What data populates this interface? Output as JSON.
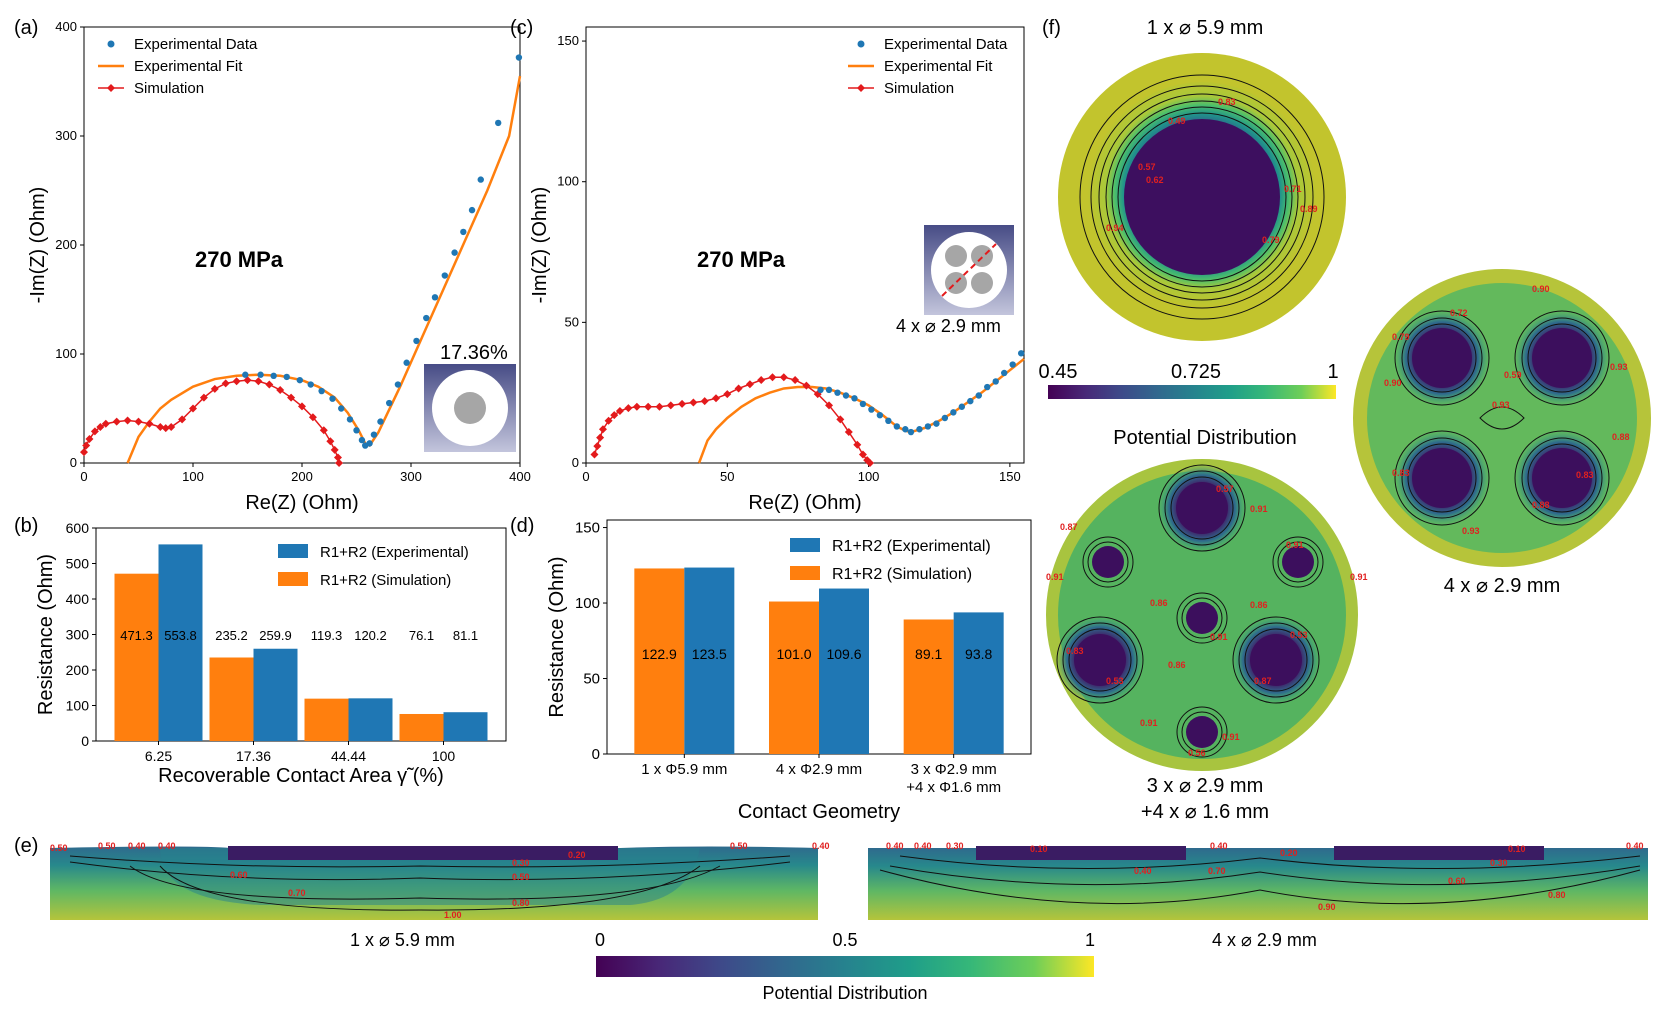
{
  "panel_labels": [
    "(a)",
    "(b)",
    "(c)",
    "(d)",
    "(e)",
    "(f)"
  ],
  "colors": {
    "experimental": "#1f77b4",
    "fit": "#ff7f0e",
    "simulation": "#e31a1c",
    "bar_sim": "#ff7f0e",
    "bar_exp": "#1f77b4",
    "viridis_dark": "#440154",
    "viridis_mid": "#21918c",
    "viridis_light": "#fde725",
    "contour_label": "#e02020"
  },
  "chart_data": [
    {
      "id": "a",
      "type": "scatter",
      "title": "",
      "annotation": "270 MPa",
      "inset_label": "17.36%",
      "xlabel": "Re(Z) (Ohm)",
      "ylabel": "-Im(Z) (Ohm)",
      "xlim": [
        0,
        400
      ],
      "ylim": [
        0,
        400
      ],
      "xticks": [
        0,
        100,
        200,
        300,
        400
      ],
      "yticks": [
        0,
        100,
        200,
        300,
        400
      ],
      "legend": [
        "Experimental Data",
        "Experimental Fit",
        "Simulation"
      ],
      "legend_position": "top-left",
      "series": [
        {
          "name": "Experimental Data",
          "style": "dots",
          "x": [
            148,
            162,
            174,
            186,
            198,
            208,
            218,
            228,
            236,
            244,
            250,
            255,
            258,
            262,
            266,
            272,
            280,
            288,
            296,
            305,
            314,
            322,
            331,
            340,
            348,
            356,
            364,
            380,
            399
          ],
          "y": [
            81,
            81,
            80,
            79,
            76,
            72,
            66,
            59,
            50,
            40,
            30,
            21,
            16,
            18,
            26,
            38,
            55,
            72,
            92,
            112,
            133,
            152,
            172,
            193,
            212,
            232,
            260,
            312,
            372
          ]
        },
        {
          "name": "Experimental Fit",
          "style": "line",
          "x": [
            40,
            50,
            60,
            70,
            80,
            100,
            120,
            140,
            160,
            180,
            200,
            215,
            230,
            242,
            252,
            258,
            262,
            270,
            290,
            310,
            330,
            350,
            370,
            390,
            400
          ],
          "y": [
            0,
            24,
            38,
            50,
            58,
            70,
            77,
            80,
            81,
            80,
            76,
            70,
            60,
            46,
            30,
            18,
            16,
            28,
            70,
            115,
            160,
            205,
            250,
            300,
            355
          ]
        },
        {
          "name": "Simulation",
          "style": "line-markers",
          "x": [
            0,
            2,
            5,
            10,
            15,
            20,
            30,
            40,
            50,
            60,
            70,
            75,
            80,
            90,
            100,
            110,
            120,
            130,
            140,
            150,
            160,
            170,
            180,
            190,
            200,
            210,
            220,
            226,
            230,
            233,
            234
          ],
          "y": [
            10,
            16,
            22,
            29,
            33,
            36,
            38,
            39,
            38,
            36,
            33,
            32,
            33,
            40,
            50,
            60,
            68,
            73,
            75,
            76,
            75,
            72,
            67,
            60,
            52,
            42,
            30,
            20,
            12,
            5,
            0
          ]
        }
      ]
    },
    {
      "id": "b",
      "type": "bar",
      "xlabel": "Recoverable Contact Area γ̃ (%)",
      "ylabel": "Resistance (Ohm)",
      "ylim": [
        0,
        600
      ],
      "yticks": [
        0,
        100,
        200,
        300,
        400,
        500,
        600
      ],
      "categories": [
        "6.25",
        "17.36",
        "44.44",
        "100"
      ],
      "legend_position": "top-right",
      "series": [
        {
          "name": "R1+R2 (Simulation)",
          "values": [
            471.3,
            235.2,
            119.3,
            76.1
          ],
          "labels": [
            "471.3",
            "235.2",
            "119.3",
            "76.1"
          ]
        },
        {
          "name": "R1+R2 (Experimental)",
          "values": [
            553.8,
            259.9,
            120.2,
            81.1
          ],
          "labels": [
            "553.8",
            "259.9",
            "120.2",
            "81.1"
          ]
        }
      ],
      "legend": [
        "R1+R2 (Experimental)",
        "R1+R2 (Simulation)"
      ]
    },
    {
      "id": "c",
      "type": "scatter",
      "annotation": "270 MPa",
      "inset_label": "4 x ⌀ 2.9 mm",
      "xlabel": "Re(Z) (Ohm)",
      "ylabel": "-Im(Z) (Ohm)",
      "xlim": [
        0,
        155
      ],
      "ylim": [
        0,
        155
      ],
      "xticks": [
        0,
        50,
        100,
        150
      ],
      "yticks": [
        0,
        50,
        100,
        150
      ],
      "legend": [
        "Experimental Data",
        "Experimental Fit",
        "Simulation"
      ],
      "legend_position": "top-right",
      "series": [
        {
          "name": "Experimental Data",
          "style": "dots",
          "x": [
            83,
            86,
            89,
            92,
            95,
            98,
            101,
            104,
            107,
            110,
            113,
            115,
            118,
            121,
            124,
            127,
            130,
            133,
            136,
            139,
            142,
            145,
            148,
            151,
            154
          ],
          "y": [
            26,
            26,
            25,
            24,
            23,
            21,
            19,
            17,
            15,
            13,
            12,
            11,
            12,
            13,
            14,
            16,
            18,
            20,
            22,
            24,
            27,
            29,
            32,
            35,
            39
          ]
        },
        {
          "name": "Experimental Fit",
          "style": "line",
          "x": [
            40,
            43,
            46,
            50,
            55,
            60,
            65,
            70,
            75,
            80,
            85,
            90,
            95,
            100,
            105,
            110,
            113,
            115,
            120,
            125,
            130,
            135,
            140,
            145,
            150,
            155
          ],
          "y": [
            0,
            8,
            12,
            16,
            20,
            23,
            25,
            26.5,
            27,
            27,
            26.5,
            25,
            23,
            20.5,
            17,
            13,
            11.5,
            11,
            12.5,
            15,
            18,
            21.5,
            25,
            29,
            33,
            37
          ]
        },
        {
          "name": "Simulation",
          "style": "line-markers",
          "x": [
            3,
            4,
            5,
            6,
            8,
            10,
            12,
            15,
            18,
            22,
            26,
            30,
            34,
            38,
            42,
            46,
            50,
            54,
            58,
            62,
            66,
            70,
            74,
            78,
            82,
            86,
            90,
            93,
            96,
            98,
            99.5,
            100.5
          ],
          "y": [
            3,
            6,
            9,
            12,
            15,
            17,
            18.5,
            19.5,
            20,
            20,
            20,
            20.5,
            21,
            21.5,
            22,
            23,
            24.5,
            26.5,
            28,
            29.5,
            30.5,
            30.5,
            29.5,
            27.5,
            24.5,
            20.5,
            15.5,
            11,
            6.5,
            3,
            1,
            0
          ]
        }
      ]
    },
    {
      "id": "d",
      "type": "bar",
      "xlabel": "Contact Geometry",
      "ylabel": "Resistance (Ohm)",
      "ylim": [
        0,
        155
      ],
      "yticks": [
        0,
        50,
        100,
        150
      ],
      "categories": [
        "1 x Φ5.9 mm",
        "4 x Φ2.9 mm",
        "3 x Φ2.9 mm\n+4 x Φ1.6 mm"
      ],
      "legend_position": "top-right",
      "series": [
        {
          "name": "R1+R2 (Simulation)",
          "values": [
            122.9,
            101.0,
            89.1
          ],
          "labels": [
            "122.9",
            "101.0",
            "89.1"
          ]
        },
        {
          "name": "R1+R2 (Experimental)",
          "values": [
            123.5,
            109.6,
            93.8
          ],
          "labels": [
            "123.5",
            "109.6",
            "93.8"
          ]
        }
      ],
      "legend": [
        "R1+R2 (Experimental)",
        "R1+R2 (Simulation)"
      ]
    },
    {
      "id": "e",
      "type": "heatmap",
      "maps": [
        {
          "caption": "1 x ⌀ 5.9 mm",
          "contour_labels": [
            "0.50",
            "0.50",
            "0.40",
            "0.40",
            "0.20",
            "0.30",
            "0.60",
            "0.50",
            "0.70",
            "0.80",
            "1.00",
            "0.50",
            "0.40"
          ]
        },
        {
          "caption": "4 x ⌀ 2.9 mm",
          "contour_labels": [
            "0.40",
            "0.40",
            "0.30",
            "0.10",
            "0.40",
            "0.20",
            "0.40",
            "0.70",
            "0.10",
            "0.30",
            "0.60",
            "0.90",
            "0.80",
            "0.40"
          ]
        }
      ],
      "colorbar": {
        "ticks": [
          "0",
          "0.5",
          "1"
        ],
        "label": "Potential Distribution"
      }
    },
    {
      "id": "f",
      "type": "heatmap",
      "maps": [
        {
          "caption": "1 x ⌀ 5.9 mm"
        },
        {
          "caption": "4 x ⌀ 2.9 mm"
        },
        {
          "caption_line1": "3 x ⌀ 2.9 mm",
          "caption_line2": "+4 x ⌀ 1.6 mm"
        }
      ],
      "colorbar": {
        "ticks": [
          "0.45",
          "0.725",
          "1"
        ],
        "label": "Potential Distribution"
      }
    }
  ]
}
